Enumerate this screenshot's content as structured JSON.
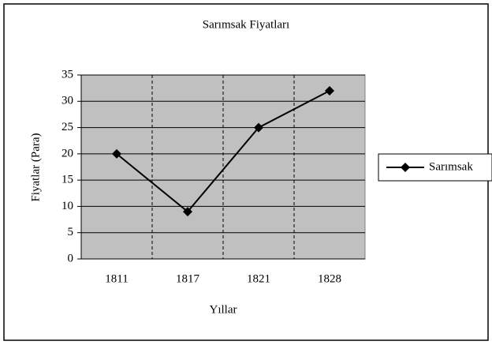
{
  "chart_data": {
    "type": "line",
    "title": "Sarımsak Fiyatları",
    "x_label": "Yıllar",
    "y_label": "Fiyatlar (Para)",
    "categories": [
      "1811",
      "1817",
      "1821",
      "1828"
    ],
    "series": [
      {
        "name": "Sarımsak",
        "color": "#000080",
        "values": [
          20,
          9,
          25,
          32
        ]
      }
    ],
    "ylim": [
      0,
      35
    ],
    "yticks": [
      0,
      5,
      10,
      15,
      20,
      25,
      30,
      35
    ],
    "grid": true,
    "legend": "right"
  }
}
